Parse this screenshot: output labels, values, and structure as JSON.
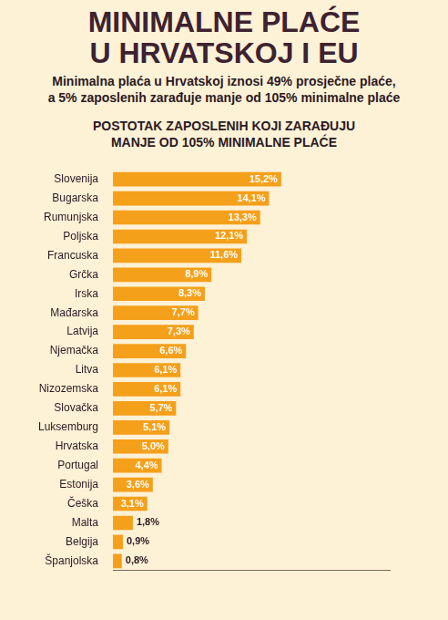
{
  "header": {
    "title": "MINIMALNE PLAĆE U HRVATSKOJ I EU",
    "subtitle": "Minimalna plaća u Hrvatskoj iznosi 49% prosječne plaće, a 5% zaposlenih zarađuje manje od 105% minimalne plaće"
  },
  "chart_data": {
    "type": "bar",
    "orientation": "horizontal",
    "title": "POSTOTAK ZAPOSLENIH KOJI ZARAĐUJU MANJE OD 105% MINIMALNE PLAĆE",
    "categories": [
      "Slovenija",
      "Bugarska",
      "Rumunjska",
      "Poljska",
      "Francuska",
      "Grčka",
      "Irska",
      "Mađarska",
      "Latvija",
      "Njemačka",
      "Litva",
      "Nizozemska",
      "Slovačka",
      "Luksemburg",
      "Hrvatska",
      "Portugal",
      "Estonija",
      "Češka",
      "Malta",
      "Belgija",
      "Španjolska"
    ],
    "values": [
      15.2,
      14.1,
      13.3,
      12.1,
      11.6,
      8.9,
      8.3,
      7.7,
      7.3,
      6.6,
      6.1,
      6.1,
      5.7,
      5.1,
      5.0,
      4.4,
      3.6,
      3.1,
      1.8,
      0.9,
      0.8
    ],
    "value_labels": [
      "15,2%",
      "14,1%",
      "13,3%",
      "12,1%",
      "11,6%",
      "8,9%",
      "8,3%",
      "7,7%",
      "7,3%",
      "6,6%",
      "6,1%",
      "6,1%",
      "5,7%",
      "5,1%",
      "5,0%",
      "4,4%",
      "3,6%",
      "3,1%",
      "1,8%",
      "0,9%",
      "0,8%"
    ],
    "color": "#f5a01a",
    "xlim": [
      0,
      25
    ],
    "grid": false,
    "data_labels": true,
    "tick_labels": "y"
  }
}
